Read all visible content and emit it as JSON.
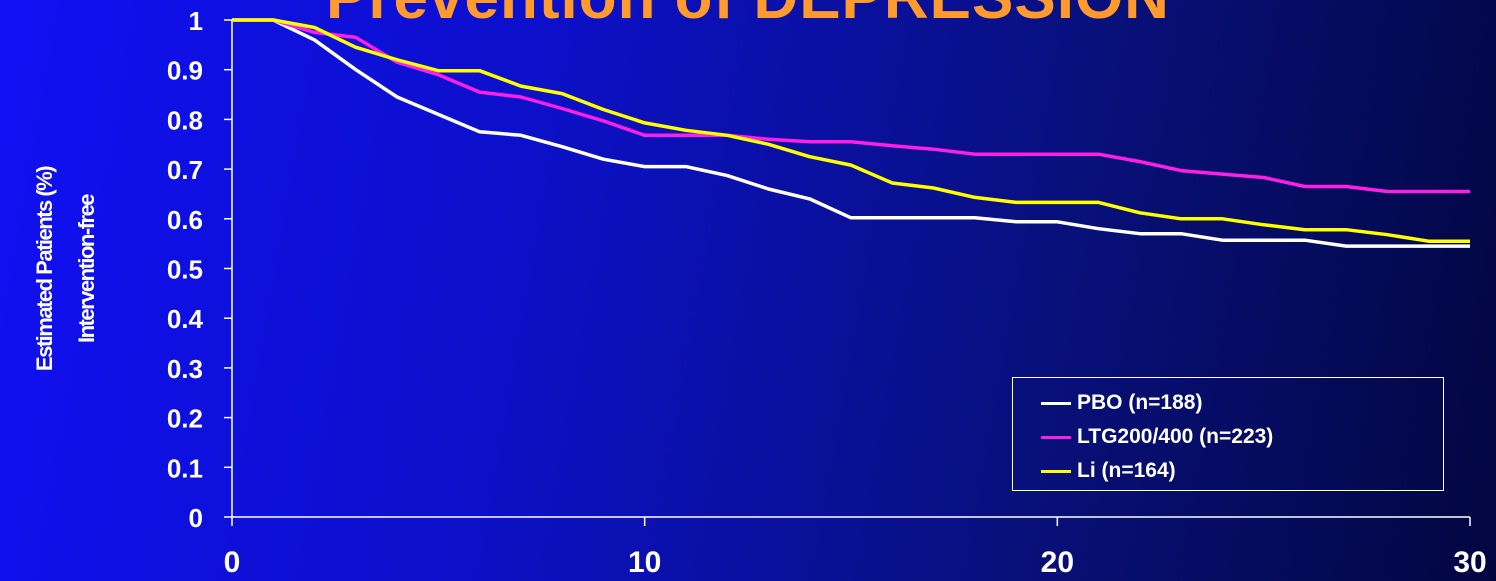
{
  "title": "Prevention of DEPRESSION",
  "chart_data": {
    "type": "line",
    "ylabel_lines": [
      "Estimated Patients (%)",
      "Intervention-free"
    ],
    "xlabel": "",
    "xlim": [
      0,
      30
    ],
    "ylim": [
      0,
      1
    ],
    "x_ticks": [
      "0",
      "10",
      "20",
      "30"
    ],
    "y_ticks": [
      "0",
      "0.1",
      "0.2",
      "0.3",
      "0.4",
      "0.5",
      "0.6",
      "0.7",
      "0.8",
      "0.9",
      "1"
    ],
    "grid": false,
    "legend_position": "bottom-right",
    "series": [
      {
        "name": "PBO (n=188)",
        "color": "#ffffff",
        "x": [
          0,
          1,
          2,
          3,
          4,
          5,
          6,
          7,
          8,
          9,
          10,
          11,
          12,
          13,
          14,
          15,
          16,
          17,
          18,
          19,
          20,
          21,
          22,
          23,
          24,
          25,
          26,
          27,
          28,
          29,
          30
        ],
        "y": [
          1.0,
          1.0,
          0.96,
          0.9,
          0.845,
          0.81,
          0.775,
          0.768,
          0.745,
          0.72,
          0.705,
          0.705,
          0.687,
          0.66,
          0.64,
          0.602,
          0.602,
          0.602,
          0.602,
          0.594,
          0.594,
          0.58,
          0.57,
          0.57,
          0.557,
          0.557,
          0.557,
          0.545,
          0.545,
          0.545,
          0.545
        ]
      },
      {
        "name": "LTG200/400 (n=223)",
        "color": "#ff1ee6",
        "x": [
          0,
          1,
          2,
          3,
          4,
          5,
          6,
          7,
          8,
          9,
          10,
          11,
          12,
          13,
          14,
          15,
          16,
          17,
          18,
          19,
          20,
          21,
          22,
          23,
          24,
          25,
          26,
          27,
          28,
          29,
          30
        ],
        "y": [
          1.0,
          1.0,
          0.975,
          0.965,
          0.915,
          0.89,
          0.855,
          0.845,
          0.822,
          0.797,
          0.768,
          0.768,
          0.768,
          0.76,
          0.755,
          0.755,
          0.747,
          0.74,
          0.73,
          0.73,
          0.73,
          0.73,
          0.715,
          0.697,
          0.69,
          0.683,
          0.665,
          0.665,
          0.655,
          0.655,
          0.655
        ]
      },
      {
        "name": "Li (n=164)",
        "color": "#ffff00",
        "x": [
          0,
          1,
          2,
          3,
          4,
          5,
          6,
          7,
          8,
          9,
          10,
          11,
          12,
          13,
          14,
          15,
          16,
          17,
          18,
          19,
          20,
          21,
          22,
          23,
          24,
          25,
          26,
          27,
          28,
          29,
          30
        ],
        "y": [
          1.0,
          1.0,
          0.985,
          0.945,
          0.92,
          0.898,
          0.898,
          0.867,
          0.852,
          0.82,
          0.793,
          0.778,
          0.768,
          0.75,
          0.725,
          0.708,
          0.672,
          0.662,
          0.643,
          0.633,
          0.633,
          0.633,
          0.612,
          0.6,
          0.6,
          0.588,
          0.578,
          0.578,
          0.568,
          0.555,
          0.555
        ]
      }
    ]
  }
}
